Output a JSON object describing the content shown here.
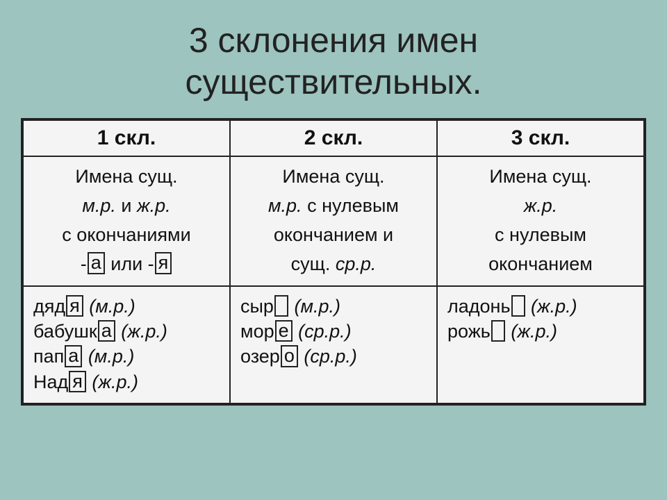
{
  "colors": {
    "background": "#9dc4bf",
    "paper": "#f3f4f3",
    "ink": "#111111",
    "border": "#222222"
  },
  "typography": {
    "title_fontsize": 50,
    "header_fontsize": 30,
    "body_fontsize": 27,
    "font_family": "Arial"
  },
  "title_line1": "3 склонения имен",
  "title_line2": "существительных.",
  "table": {
    "headers": [
      "1 скл.",
      "2 скл.",
      "3 скл."
    ],
    "rules": {
      "c1": {
        "l1": "Имена сущ.",
        "l2a": "м.р.",
        "l2b": " и ",
        "l2c": "ж.р.",
        "l3": "с окончаниями",
        "suffix1": "а",
        "mid": " или  -",
        "suffix2": "я",
        "prefix": "-"
      },
      "c2": {
        "l1": "Имена сущ.",
        "l2a": "м.р.",
        "l2b": " с нулевым",
        "l3": "окончанием и",
        "l4a": "сущ. ",
        "l4b": "ср.р."
      },
      "c3": {
        "l1": "Имена сущ.",
        "l2": "ж.р.",
        "l3": "с нулевым",
        "l4": "окончанием"
      }
    },
    "examples": {
      "c1": [
        {
          "stem": "дяд",
          "end": "я",
          "empty": false,
          "paren": "(м.р.)"
        },
        {
          "stem": "бабушк",
          "end": "а",
          "empty": false,
          "paren": "(ж.р.)"
        },
        {
          "stem": "пап",
          "end": "а",
          "empty": false,
          "paren": "(м.р.)"
        },
        {
          "stem": "Над",
          "end": "я",
          "empty": false,
          "paren": "(ж.р.)"
        }
      ],
      "c2": [
        {
          "stem": "сыр",
          "end": "",
          "empty": true,
          "paren": "(м.р.)"
        },
        {
          "stem": "мор",
          "end": "е",
          "empty": false,
          "paren": "(ср.р.)"
        },
        {
          "stem": "озер",
          "end": "о",
          "empty": false,
          "paren": "(ср.р.)"
        }
      ],
      "c3": [
        {
          "stem": "ладонь",
          "end": "",
          "empty": true,
          "paren": "(ж.р.)"
        },
        {
          "stem": "рожь",
          "end": "",
          "empty": true,
          "paren": "(ж.р.)"
        }
      ]
    }
  }
}
